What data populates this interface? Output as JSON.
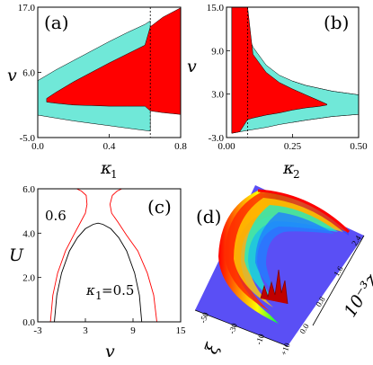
{
  "chart_data": [
    {
      "panel": "(a)",
      "type": "area",
      "xlabel": "κ",
      "xlabel_sub": "1",
      "ylabel": "v",
      "xlim": [
        0,
        0.8
      ],
      "ylim": [
        -5,
        17
      ],
      "x_ticks": [
        "0.0",
        "0.4",
        "0.8"
      ],
      "y_ticks": [
        "-5.0",
        "6.0",
        "17.0"
      ],
      "colors": {
        "outer_region": "#70e8d8",
        "inner_region": "#ff0000"
      },
      "outer_region": {
        "x": [
          0,
          0.1,
          0.2,
          0.3,
          0.4,
          0.5,
          0.6,
          0.63
        ],
        "upper": [
          4.6,
          6.4,
          8.0,
          9.6,
          11.2,
          12.7,
          14.1,
          14.7
        ],
        "lower": [
          -1.2,
          -1.7,
          -2.2,
          -2.6,
          -3.0,
          -3.4,
          -3.8,
          -3.9
        ]
      },
      "inner_region": {
        "x": [
          0.05,
          0.1,
          0.2,
          0.3,
          0.4,
          0.5,
          0.6,
          0.63,
          0.7,
          0.8
        ],
        "upper": [
          1.6,
          2.6,
          4.4,
          6.0,
          7.6,
          9.1,
          10.6,
          13.7,
          15.3,
          16.9
        ],
        "lower": [
          1.0,
          0.8,
          0.5,
          0.4,
          0.3,
          0.3,
          0.3,
          -0.5,
          -0.8,
          -1.1
        ]
      },
      "dotted_line_x": 0.63
    },
    {
      "panel": "(b)",
      "type": "area",
      "xlabel": "κ",
      "xlabel_sub": "2",
      "ylabel": "v",
      "xlim": [
        0,
        0.5
      ],
      "ylim": [
        -3,
        15
      ],
      "x_ticks": [
        "0.00",
        "0.25",
        "0.50"
      ],
      "y_ticks": [
        "-3.0",
        "3.0",
        "9.0",
        "15.0"
      ],
      "colors": {
        "outer_region": "#70e8d8",
        "inner_region": "#ff0000",
        "gray_region": "#607870"
      },
      "outer_region": {
        "x": [
          0.02,
          0.05,
          0.1,
          0.15,
          0.2,
          0.25,
          0.3,
          0.4,
          0.5
        ],
        "upper": [
          15,
          14.0,
          9.5,
          7.0,
          5.6,
          4.8,
          4.2,
          3.4,
          2.9
        ],
        "lower": [
          -2.4,
          -2.2,
          -1.9,
          -1.6,
          -1.2,
          -0.9,
          -0.6,
          -0.1,
          0.2
        ]
      },
      "inner_region": {
        "x": [
          0.02,
          0.05,
          0.08,
          0.1,
          0.15,
          0.2,
          0.25,
          0.3,
          0.35,
          0.38
        ],
        "upper": [
          15,
          15,
          15,
          8.5,
          6.0,
          4.6,
          3.7,
          2.9,
          2.1,
          1.6
        ],
        "lower": [
          -2.4,
          -2.2,
          -0.5,
          -0.3,
          0.1,
          0.4,
          0.8,
          1.1,
          1.3,
          1.5
        ]
      },
      "dotted_line_x": 0.08
    },
    {
      "panel": "(c)",
      "type": "line",
      "xlabel": "v",
      "ylabel": "U",
      "xlim": [
        -3,
        15
      ],
      "ylim": [
        0,
        6
      ],
      "x_ticks": [
        "-3",
        "3",
        "9",
        "15"
      ],
      "y_ticks": [
        "0.0",
        "2.0",
        "4.0",
        "6.0"
      ],
      "annotations": [
        "0.6",
        "κ",
        "1",
        "=0.5"
      ],
      "series": [
        {
          "color": "#000000",
          "x": [
            -0.9,
            -0.6,
            0.0,
            1.0,
            2.0,
            3.0,
            4.0,
            4.6,
            5.2,
            6.2,
            7.2,
            8.2,
            9.2,
            9.8,
            10.1
          ],
          "y": [
            0.0,
            1.2,
            2.2,
            3.2,
            3.8,
            4.2,
            4.4,
            4.45,
            4.4,
            4.2,
            3.8,
            3.2,
            2.2,
            1.2,
            0.0
          ]
        },
        {
          "color": "#ff0000",
          "x": [
            -1.4,
            -1.1,
            -0.5,
            0.5,
            1.5,
            2.4,
            3.0,
            3.2,
            3.1,
            2.5,
            1.9
          ],
          "y": [
            0.0,
            1.2,
            2.2,
            3.2,
            3.9,
            4.5,
            4.9,
            5.3,
            5.7,
            5.9,
            6.0
          ]
        },
        {
          "color": "#ff0000",
          "x": [
            12.0,
            11.6,
            10.8,
            9.6,
            8.2,
            7.1,
            6.3,
            6.1,
            6.4,
            7.0,
            7.6
          ],
          "y": [
            0.0,
            1.2,
            2.2,
            3.2,
            3.9,
            4.5,
            4.9,
            5.3,
            5.7,
            5.9,
            6.0
          ]
        }
      ]
    },
    {
      "panel": "(d)",
      "type": "surface",
      "zlabel": "10⁻³z",
      "xlabel": "ξ",
      "z_ticks": [
        "0.0",
        "0.8",
        "1.6",
        "2.4"
      ],
      "xi_ticks": [
        "-50",
        "-30",
        "-10",
        "+10"
      ]
    }
  ]
}
